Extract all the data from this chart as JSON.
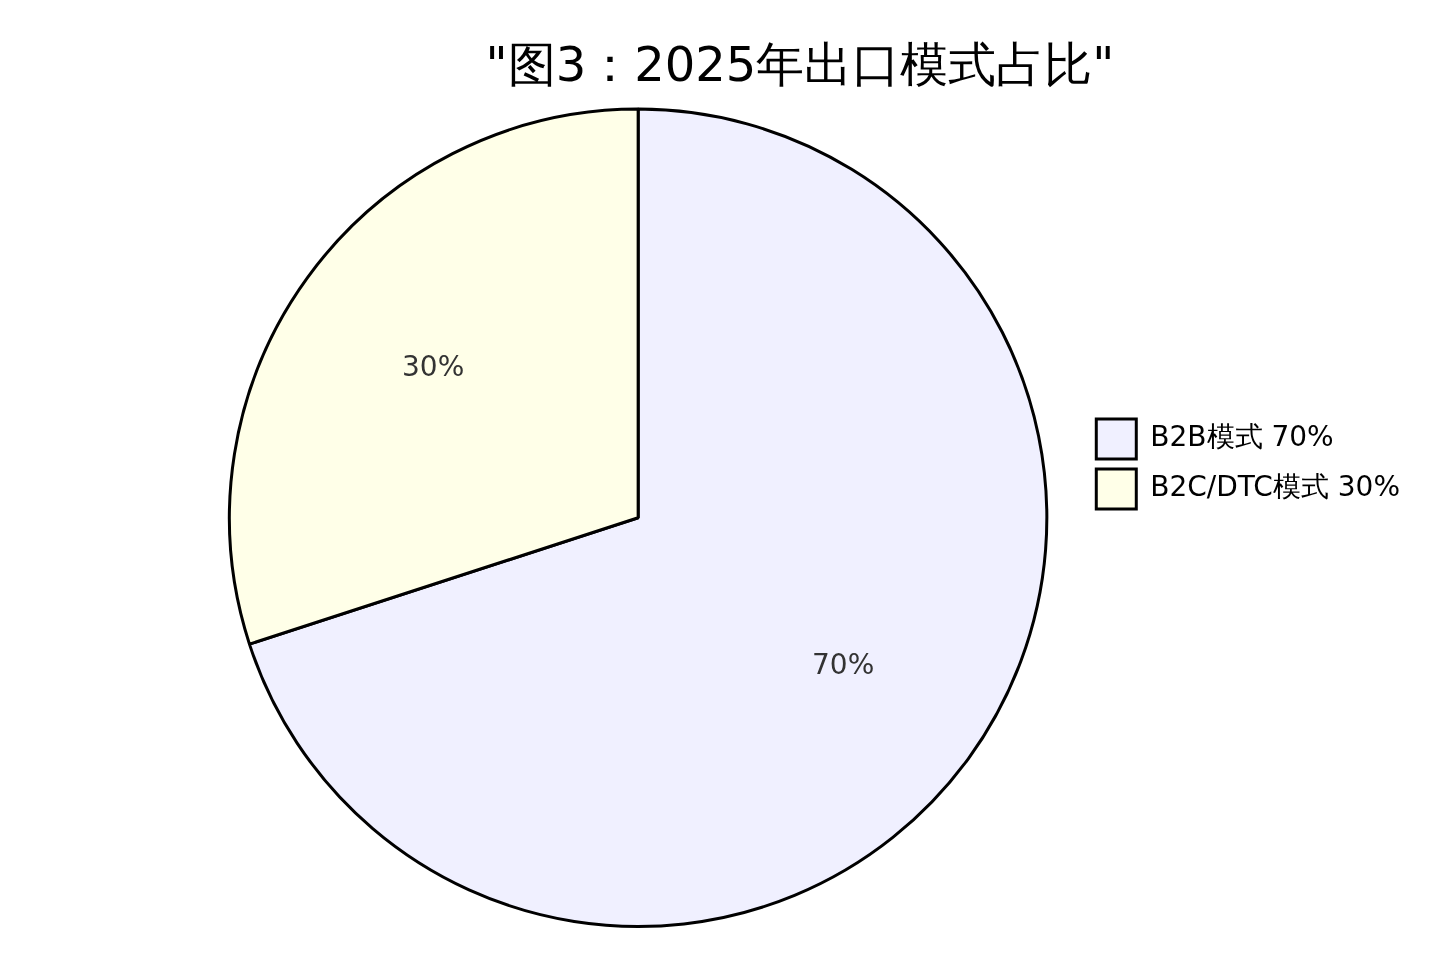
{
  "chart_data": {
    "type": "pie",
    "title": "\"图3：2025年出口模式占比\"",
    "categories": [
      "B2B模式 70%",
      "B2C/DTC模式 30%"
    ],
    "values": [
      70,
      30
    ],
    "colors": [
      "#f0f0ff",
      "#ffffe8"
    ],
    "value_labels": [
      "70%",
      "30%"
    ],
    "legend": "right"
  }
}
